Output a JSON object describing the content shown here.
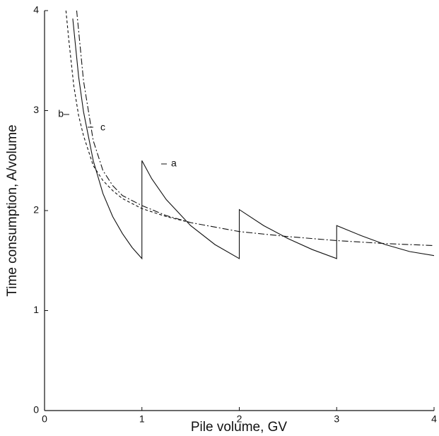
{
  "chart_data": {
    "type": "line",
    "xlabel": "Pile volume, GV",
    "ylabel": "Time consumption, A/volume",
    "xlim": [
      0,
      4
    ],
    "ylim": [
      0,
      4
    ],
    "xticks": [
      0,
      1,
      2,
      3,
      4
    ],
    "yticks": [
      0,
      1,
      2,
      3,
      4
    ],
    "grid": false,
    "series": [
      {
        "name": "a",
        "color": "#111111",
        "dash": "solid",
        "x": [
          0.29,
          0.35,
          0.4,
          0.5,
          0.6,
          0.7,
          0.8,
          0.9,
          1,
          1,
          1.1,
          1.25,
          1.5,
          1.75,
          2,
          2,
          2.25,
          2.5,
          2.75,
          3,
          3,
          3.25,
          3.5,
          3.75,
          4
        ],
        "values": [
          3.92,
          3.34,
          2.99,
          2.5,
          2.17,
          1.94,
          1.77,
          1.63,
          1.52,
          2.5,
          2.32,
          2.11,
          1.85,
          1.66,
          1.52,
          2.01,
          1.85,
          1.72,
          1.61,
          1.52,
          1.85,
          1.75,
          1.66,
          1.59,
          1.55
        ]
      },
      {
        "name": "b",
        "color": "#111111",
        "dash": "dashed",
        "x": [
          0.22,
          0.25,
          0.3,
          0.35,
          0.4,
          0.5,
          0.6,
          0.7,
          0.8,
          1,
          1.25,
          1.5
        ],
        "values": [
          4,
          3.7,
          3.25,
          2.95,
          2.75,
          2.45,
          2.3,
          2.2,
          2.12,
          2.02,
          1.94,
          1.88
        ]
      },
      {
        "name": "c",
        "color": "#111111",
        "dash": "dashdot",
        "x": [
          0.33,
          0.4,
          0.5,
          0.6,
          0.7,
          0.8,
          1,
          1.25,
          1.5,
          2,
          2.5,
          3,
          3.5,
          4
        ],
        "values": [
          4,
          3.3,
          2.7,
          2.4,
          2.25,
          2.15,
          2.05,
          1.95,
          1.88,
          1.79,
          1.74,
          1.7,
          1.67,
          1.65
        ]
      }
    ]
  }
}
